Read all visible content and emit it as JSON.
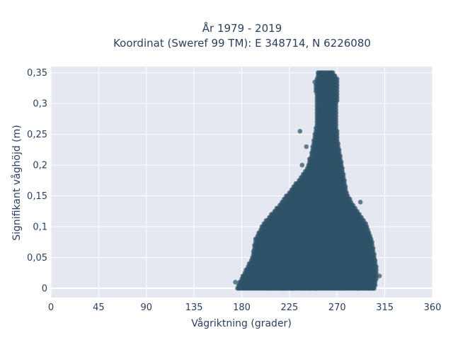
{
  "chart_data": {
    "type": "scatter",
    "title_lines": [
      "År 1979 - 2019",
      "Koordinat (Sweref 99 TM): E 348714, N 6226080"
    ],
    "xlabel": "Vågriktning (grader)",
    "ylabel": "Signifikant våghöjd (m)",
    "xlim": [
      0,
      360
    ],
    "ylim": [
      -0.015,
      0.36
    ],
    "xticks": [
      0,
      45,
      90,
      135,
      180,
      225,
      270,
      315,
      360
    ],
    "xtick_labels": [
      "0",
      "45",
      "90",
      "135",
      "180",
      "225",
      "270",
      "315",
      "360"
    ],
    "yticks": [
      0,
      0.05,
      0.1,
      0.15,
      0.2,
      0.25,
      0.3,
      0.35
    ],
    "ytick_labels": [
      "0",
      "0,05",
      "0,1",
      "0,15",
      "0,2",
      "0,25",
      "0,3",
      "0,35"
    ],
    "grid": true,
    "marker_color": "#2e5266",
    "plot_bg": "#e5e8f0",
    "grid_color": "#ffffff",
    "text_color": "#2a3f5f",
    "value_step": 0.005,
    "envelope": [
      {
        "y": 0.0,
        "x_min": 176,
        "x_max": 305
      },
      {
        "y": 0.01,
        "x_min": 178,
        "x_max": 306
      },
      {
        "y": 0.02,
        "x_min": 181,
        "x_max": 307
      },
      {
        "y": 0.03,
        "x_min": 184,
        "x_max": 307
      },
      {
        "y": 0.04,
        "x_min": 187,
        "x_max": 306
      },
      {
        "y": 0.05,
        "x_min": 190,
        "x_max": 305
      },
      {
        "y": 0.06,
        "x_min": 191,
        "x_max": 304
      },
      {
        "y": 0.07,
        "x_min": 192,
        "x_max": 303
      },
      {
        "y": 0.08,
        "x_min": 193,
        "x_max": 302
      },
      {
        "y": 0.09,
        "x_min": 196,
        "x_max": 300
      },
      {
        "y": 0.1,
        "x_min": 199,
        "x_max": 298
      },
      {
        "y": 0.11,
        "x_min": 203,
        "x_max": 295
      },
      {
        "y": 0.12,
        "x_min": 208,
        "x_max": 291
      },
      {
        "y": 0.13,
        "x_min": 213,
        "x_max": 287
      },
      {
        "y": 0.14,
        "x_min": 218,
        "x_max": 283
      },
      {
        "y": 0.15,
        "x_min": 222,
        "x_max": 280
      },
      {
        "y": 0.16,
        "x_min": 227,
        "x_max": 278
      },
      {
        "y": 0.17,
        "x_min": 231,
        "x_max": 277
      },
      {
        "y": 0.18,
        "x_min": 236,
        "x_max": 276
      },
      {
        "y": 0.19,
        "x_min": 240,
        "x_max": 275
      },
      {
        "y": 0.2,
        "x_min": 243,
        "x_max": 274
      },
      {
        "y": 0.21,
        "x_min": 245,
        "x_max": 273
      },
      {
        "y": 0.22,
        "x_min": 246,
        "x_max": 272
      },
      {
        "y": 0.23,
        "x_min": 247,
        "x_max": 271
      },
      {
        "y": 0.24,
        "x_min": 248,
        "x_max": 270
      },
      {
        "y": 0.25,
        "x_min": 249,
        "x_max": 270
      },
      {
        "y": 0.26,
        "x_min": 250,
        "x_max": 269
      },
      {
        "y": 0.27,
        "x_min": 251,
        "x_max": 269
      },
      {
        "y": 0.28,
        "x_min": 251,
        "x_max": 269
      },
      {
        "y": 0.29,
        "x_min": 251,
        "x_max": 269
      },
      {
        "y": 0.3,
        "x_min": 251,
        "x_max": 269
      },
      {
        "y": 0.31,
        "x_min": 251,
        "x_max": 270
      },
      {
        "y": 0.32,
        "x_min": 250,
        "x_max": 270
      },
      {
        "y": 0.33,
        "x_min": 250,
        "x_max": 270
      },
      {
        "y": 0.34,
        "x_min": 251,
        "x_max": 270
      },
      {
        "y": 0.35,
        "x_min": 252,
        "x_max": 266
      }
    ],
    "outliers": [
      {
        "x": 218,
        "y": 0.0
      },
      {
        "x": 220,
        "y": 0.0
      },
      {
        "x": 228,
        "y": 0.0
      },
      {
        "x": 238,
        "y": 0.0
      },
      {
        "x": 245,
        "y": 0.0
      },
      {
        "x": 250,
        "y": 0.0
      },
      {
        "x": 290,
        "y": 0.0
      },
      {
        "x": 300,
        "y": 0.0
      },
      {
        "x": 304,
        "y": 0.0
      },
      {
        "x": 208,
        "y": 0.0
      },
      {
        "x": 310,
        "y": 0.02
      },
      {
        "x": 292,
        "y": 0.14
      },
      {
        "x": 241,
        "y": 0.23
      },
      {
        "x": 244,
        "y": 0.21
      },
      {
        "x": 237,
        "y": 0.2
      },
      {
        "x": 235,
        "y": 0.255
      },
      {
        "x": 249,
        "y": 0.335
      },
      {
        "x": 174,
        "y": 0.01
      }
    ]
  }
}
